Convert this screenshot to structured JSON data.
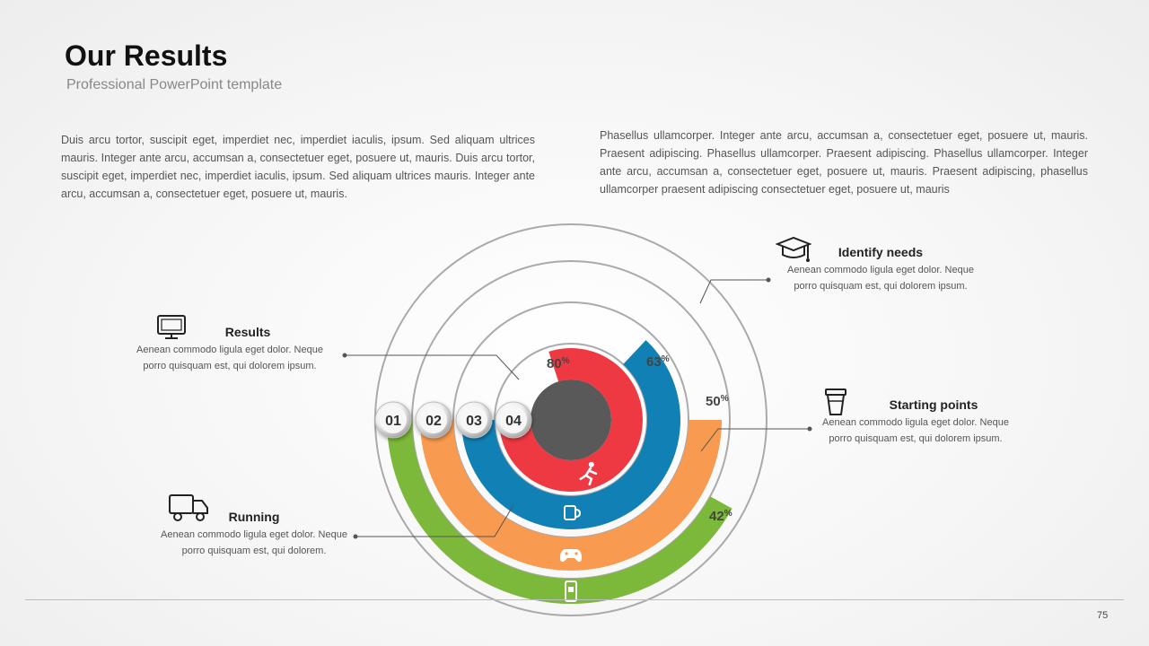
{
  "header": {
    "title": "Our Results",
    "subtitle": "Professional PowerPoint template"
  },
  "paragraphs": {
    "left": "Duis arcu tortor, suscipit eget, imperdiet nec, imperdiet iaculis, ipsum. Sed aliquam ultrices mauris. Integer ante arcu, accumsan a, consectetuer eget, posuere ut, mauris. Duis arcu tortor, suscipit eget, imperdiet nec, imperdiet iaculis, ipsum. Sed aliquam ultrices mauris. Integer ante arcu, accumsan a, consectetuer eget, posuere ut, mauris.",
    "right": "Phasellus ullamcorper. Integer ante arcu, accumsan a, consectetuer eget, posuere ut, mauris. Praesent adipiscing. Phasellus ullamcorper. Praesent adipiscing. Phasellus ullamcorper. Integer ante arcu, accumsan a, consectetuer eget, posuere ut, mauris. Praesent adipiscing, phasellus ullamcorper praesent adipiscing consectetuer eget, posuere ut, mauris"
  },
  "callouts": {
    "results": {
      "title": "Results",
      "desc": "Aenean commodo ligula eget dolor. Neque porro quisquam est, qui dolorem ipsum.",
      "icon": "monitor-icon"
    },
    "running": {
      "title": "Running",
      "desc": "Aenean commodo ligula eget dolor. Neque porro quisquam est, qui dolorem.",
      "icon": "truck-icon"
    },
    "identify": {
      "title": "Identify needs",
      "desc": "Aenean commodo ligula eget dolor. Neque porro quisquam est, qui dolorem ipsum.",
      "icon": "graduation-cap-icon"
    },
    "starting": {
      "title": "Starting points",
      "desc": "Aenean commodo ligula eget dolor. Neque porro quisquam est, qui dolorem ipsum.",
      "icon": "coffee-cup-icon"
    }
  },
  "rings": [
    {
      "step": "01",
      "value": 42,
      "pct_label": "42",
      "color": "#7cb83a",
      "icon": "mobile-app-icon"
    },
    {
      "step": "02",
      "value": 50,
      "pct_label": "50",
      "color": "#f89a4f",
      "icon": "gamepad-icon"
    },
    {
      "step": "03",
      "value": 63,
      "pct_label": "63",
      "color": "#1180b4",
      "icon": "mug-icon"
    },
    {
      "step": "04",
      "value": 80,
      "pct_label": "80",
      "color": "#ef3942",
      "icon": "runner-icon"
    }
  ],
  "percent_sign": "%",
  "page_number": "75"
}
